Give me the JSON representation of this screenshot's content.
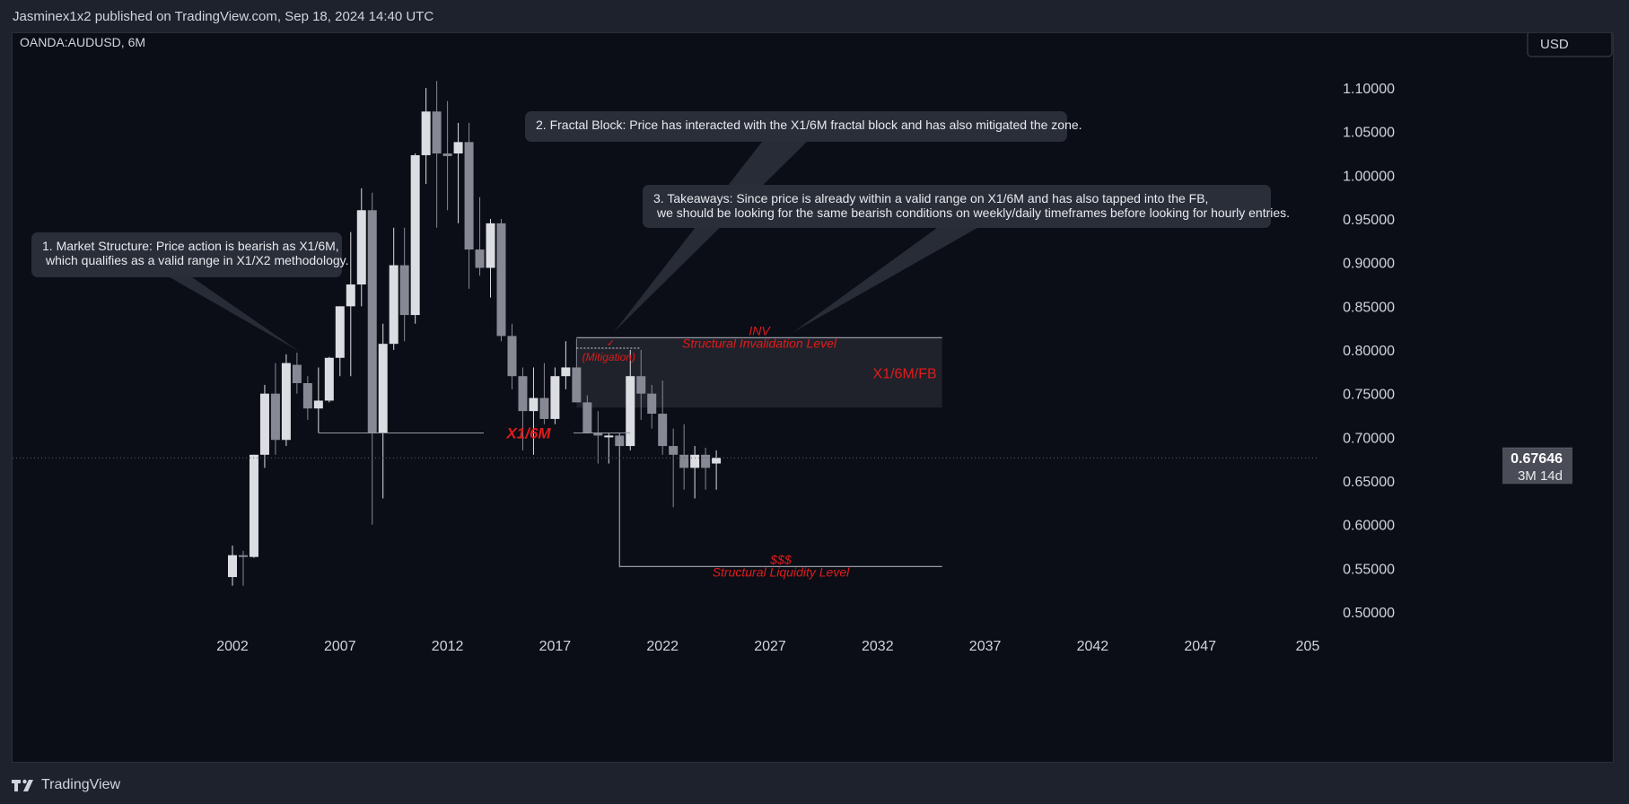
{
  "header": {
    "published_line": "Jasminex1x2 published on TradingView.com, Sep 18, 2024 14:40 UTC"
  },
  "footer": {
    "brand": "TradingView"
  },
  "colors": {
    "background": "#0b0e17",
    "frame": "#1e222d",
    "bull_candle": "#dcdde2",
    "bear_candle": "#868893",
    "annotation_red": "#e01b1b",
    "label_box": "#1e222d"
  },
  "chart_data": {
    "type": "candlestick",
    "symbol_label": "OANDA:AUDUSD, 6M",
    "currency_button": "USD",
    "x_ticks": [
      "2002",
      "2007",
      "2012",
      "2017",
      "2022",
      "2027",
      "2032",
      "2037",
      "2042",
      "2047",
      "205"
    ],
    "y_ticks": [
      "1.10000",
      "1.05000",
      "1.00000",
      "0.95000",
      "0.90000",
      "0.85000",
      "0.80000",
      "0.75000",
      "0.70000",
      "0.65000",
      "0.60000",
      "0.55000",
      "0.50000"
    ],
    "ylim": [
      0.48,
      1.13
    ],
    "xlim": [
      1999.5,
      2051.5
    ],
    "price_labels": {
      "previous": "0.67694",
      "last": "0.67646",
      "countdown": "3M 14d"
    },
    "candles": [
      {
        "t": 2002.0,
        "o": 0.54,
        "h": 0.576,
        "l": 0.53,
        "c": 0.565
      },
      {
        "t": 2002.5,
        "o": 0.565,
        "h": 0.57,
        "l": 0.53,
        "c": 0.564
      },
      {
        "t": 2003.0,
        "o": 0.563,
        "h": 0.68,
        "l": 0.562,
        "c": 0.68
      },
      {
        "t": 2003.5,
        "o": 0.68,
        "h": 0.76,
        "l": 0.665,
        "c": 0.75
      },
      {
        "t": 2004.0,
        "o": 0.75,
        "h": 0.785,
        "l": 0.68,
        "c": 0.697
      },
      {
        "t": 2004.5,
        "o": 0.697,
        "h": 0.795,
        "l": 0.69,
        "c": 0.785
      },
      {
        "t": 2005.0,
        "o": 0.783,
        "h": 0.797,
        "l": 0.75,
        "c": 0.762
      },
      {
        "t": 2005.5,
        "o": 0.762,
        "h": 0.77,
        "l": 0.72,
        "c": 0.733
      },
      {
        "t": 2006.0,
        "o": 0.733,
        "h": 0.78,
        "l": 0.705,
        "c": 0.742
      },
      {
        "t": 2006.5,
        "o": 0.742,
        "h": 0.792,
        "l": 0.74,
        "c": 0.791
      },
      {
        "t": 2007.0,
        "o": 0.791,
        "h": 0.85,
        "l": 0.77,
        "c": 0.85
      },
      {
        "t": 2007.5,
        "o": 0.85,
        "h": 0.935,
        "l": 0.77,
        "c": 0.875
      },
      {
        "t": 2008.0,
        "o": 0.875,
        "h": 0.985,
        "l": 0.85,
        "c": 0.96
      },
      {
        "t": 2008.5,
        "o": 0.96,
        "h": 0.98,
        "l": 0.6,
        "c": 0.705
      },
      {
        "t": 2009.0,
        "o": 0.705,
        "h": 0.83,
        "l": 0.63,
        "c": 0.807
      },
      {
        "t": 2009.5,
        "o": 0.807,
        "h": 0.94,
        "l": 0.8,
        "c": 0.897
      },
      {
        "t": 2010.0,
        "o": 0.897,
        "h": 0.94,
        "l": 0.81,
        "c": 0.84
      },
      {
        "t": 2010.5,
        "o": 0.84,
        "h": 1.025,
        "l": 0.83,
        "c": 1.023
      },
      {
        "t": 2011.0,
        "o": 1.023,
        "h": 1.1,
        "l": 0.99,
        "c": 1.073
      },
      {
        "t": 2011.5,
        "o": 1.073,
        "h": 1.108,
        "l": 0.94,
        "c": 1.025
      },
      {
        "t": 2012.0,
        "o": 1.025,
        "h": 1.085,
        "l": 0.96,
        "c": 1.022
      },
      {
        "t": 2012.5,
        "o": 1.025,
        "h": 1.06,
        "l": 0.945,
        "c": 1.038
      },
      {
        "t": 2013.0,
        "o": 1.038,
        "h": 1.06,
        "l": 0.87,
        "c": 0.915
      },
      {
        "t": 2013.5,
        "o": 0.915,
        "h": 0.975,
        "l": 0.885,
        "c": 0.894
      },
      {
        "t": 2014.0,
        "o": 0.894,
        "h": 0.95,
        "l": 0.86,
        "c": 0.945
      },
      {
        "t": 2014.5,
        "o": 0.945,
        "h": 0.95,
        "l": 0.81,
        "c": 0.816
      },
      {
        "t": 2015.0,
        "o": 0.816,
        "h": 0.83,
        "l": 0.755,
        "c": 0.77
      },
      {
        "t": 2015.5,
        "o": 0.77,
        "h": 0.78,
        "l": 0.685,
        "c": 0.73
      },
      {
        "t": 2016.0,
        "o": 0.73,
        "h": 0.78,
        "l": 0.68,
        "c": 0.745
      },
      {
        "t": 2016.5,
        "o": 0.745,
        "h": 0.785,
        "l": 0.715,
        "c": 0.721
      },
      {
        "t": 2017.0,
        "o": 0.721,
        "h": 0.78,
        "l": 0.715,
        "c": 0.77
      },
      {
        "t": 2017.5,
        "o": 0.77,
        "h": 0.81,
        "l": 0.755,
        "c": 0.78
      },
      {
        "t": 2018.0,
        "o": 0.78,
        "h": 0.813,
        "l": 0.74,
        "c": 0.74
      },
      {
        "t": 2018.5,
        "o": 0.74,
        "h": 0.748,
        "l": 0.705,
        "c": 0.705
      },
      {
        "t": 2019.0,
        "o": 0.705,
        "h": 0.73,
        "l": 0.67,
        "c": 0.702
      },
      {
        "t": 2019.5,
        "o": 0.702,
        "h": 0.705,
        "l": 0.67,
        "c": 0.702
      },
      {
        "t": 2020.0,
        "o": 0.702,
        "h": 0.705,
        "l": 0.551,
        "c": 0.69
      },
      {
        "t": 2020.5,
        "o": 0.69,
        "h": 0.8,
        "l": 0.685,
        "c": 0.77
      },
      {
        "t": 2021.0,
        "o": 0.77,
        "h": 0.8,
        "l": 0.72,
        "c": 0.75
      },
      {
        "t": 2021.5,
        "o": 0.75,
        "h": 0.76,
        "l": 0.71,
        "c": 0.727
      },
      {
        "t": 2022.0,
        "o": 0.727,
        "h": 0.765,
        "l": 0.68,
        "c": 0.69
      },
      {
        "t": 2022.5,
        "o": 0.69,
        "h": 0.71,
        "l": 0.62,
        "c": 0.68
      },
      {
        "t": 2023.0,
        "o": 0.68,
        "h": 0.715,
        "l": 0.64,
        "c": 0.665
      },
      {
        "t": 2023.5,
        "o": 0.665,
        "h": 0.69,
        "l": 0.63,
        "c": 0.68
      },
      {
        "t": 2024.0,
        "o": 0.68,
        "h": 0.688,
        "l": 0.64,
        "c": 0.665
      },
      {
        "t": 2024.5,
        "o": 0.67,
        "h": 0.685,
        "l": 0.64,
        "c": 0.6765
      }
    ],
    "levels": [
      {
        "name": "inv-level",
        "price": 0.814,
        "from": 2018.0,
        "to": 2035.0,
        "label_top": "INV",
        "label_bottom": "Structural Invalidation Level"
      },
      {
        "name": "liquidity-level",
        "price": 0.552,
        "from": 2020.0,
        "to": 2035.0,
        "label_top": "$$$",
        "label_bottom": "Structural Liquidity Level"
      },
      {
        "name": "x16m-level",
        "price": 0.705,
        "from": 2006.0,
        "to": 2020.5,
        "label": "X1/6M"
      }
    ],
    "zone": {
      "from": 2018.0,
      "to": 2035.0,
      "top": 0.814,
      "bottom": 0.734,
      "label": "X1/6M/FB"
    },
    "mitigation": {
      "from": 2018.0,
      "to": 2021.0,
      "price": 0.802,
      "label": "(Mitigation)",
      "check": "✓"
    },
    "annotations": [
      {
        "lines": [
          "1. Market Structure: Price action is bearish as X1/6M,",
          "which qualifies as a valid range in X1/X2 methodology."
        ]
      },
      {
        "lines": [
          "2. Fractal Block: Price has interacted with the X1/6M fractal block and has also mitigated the zone."
        ]
      },
      {
        "lines": [
          "3. Takeaways: Since price is already within a valid range on X1/6M and has also tapped into the FB,",
          "we should be looking for the same bearish conditions on weekly/daily timeframes before looking for hourly entries."
        ]
      }
    ]
  }
}
